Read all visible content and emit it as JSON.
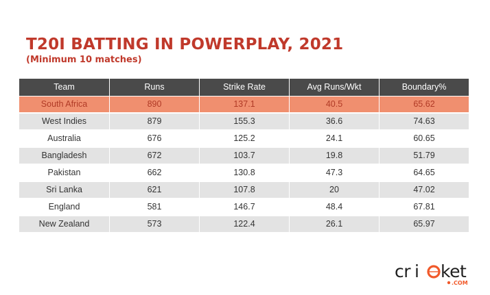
{
  "header": {
    "title": "T20I BATTING IN POWERPLAY, 2021",
    "subtitle": "(Minimum 10 matches)"
  },
  "chart_data": {
    "type": "table",
    "columns": [
      "Team",
      "Runs",
      "Strike Rate",
      "Avg Runs/Wkt",
      "Boundary%"
    ],
    "rows": [
      [
        "South Africa",
        "890",
        "137.1",
        "40.5",
        "65.62"
      ],
      [
        "West Indies",
        "879",
        "155.3",
        "36.6",
        "74.63"
      ],
      [
        "Australia",
        "676",
        "125.2",
        "24.1",
        "60.65"
      ],
      [
        "Bangladesh",
        "672",
        "103.7",
        "19.8",
        "51.79"
      ],
      [
        "Pakistan",
        "662",
        "130.8",
        "47.3",
        "64.65"
      ],
      [
        "Sri Lanka",
        "621",
        "107.8",
        "20",
        "47.02"
      ],
      [
        "England",
        "581",
        "146.7",
        "48.4",
        "67.81"
      ],
      [
        "New Zealand",
        "573",
        "122.4",
        "26.1",
        "65.97"
      ]
    ],
    "highlighted_row": 0,
    "colors": {
      "header_bg": "#4a4a4a",
      "highlight_bg": "#f08f6f",
      "highlight_text": "#b03a26",
      "stripe_bg": "#e3e3e3",
      "title": "#c0392b"
    }
  },
  "logo": {
    "text": "cricket",
    "suffix": ".COM"
  }
}
